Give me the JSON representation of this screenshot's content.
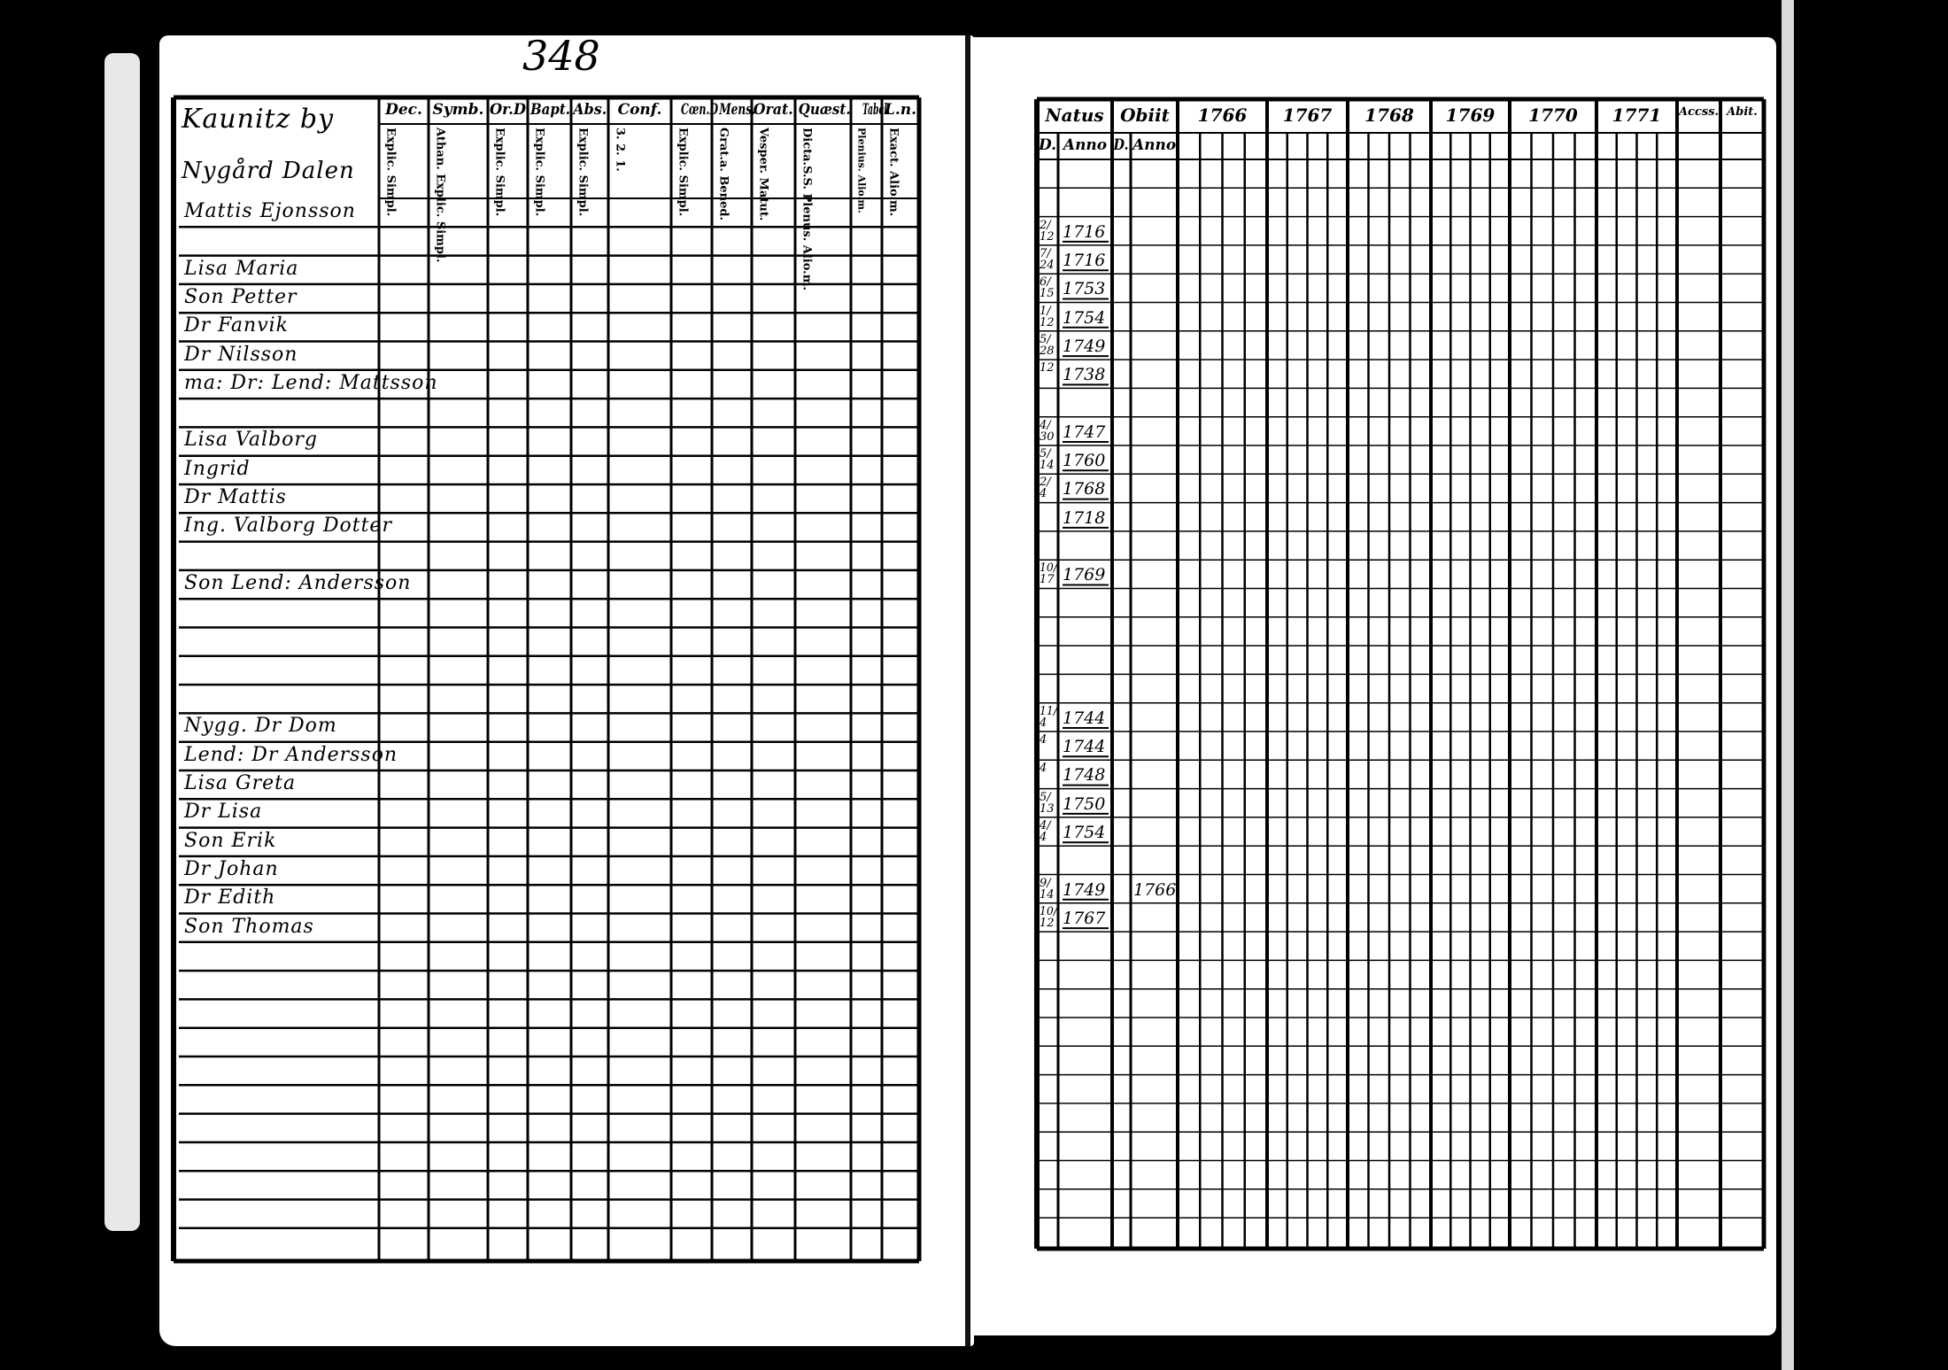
{
  "page_number": "348",
  "left_page": {
    "title_lines": [
      "Kaunitz by",
      "Nygård Dalen"
    ],
    "columns": [
      {
        "label": "Dec.",
        "sub": [
          "Explic.",
          "Simpl."
        ]
      },
      {
        "label": "Symb.",
        "sub": [
          "Athan.",
          "Explic.",
          "Simpl."
        ]
      },
      {
        "label": "Or.D",
        "sub": [
          "Explic.",
          "Simpl."
        ]
      },
      {
        "label": "Bapt.",
        "sub": [
          "Explic.",
          "Simpl."
        ]
      },
      {
        "label": "Abs.",
        "sub": [
          "Explic.",
          "Simpl."
        ]
      },
      {
        "label": "Conf.",
        "sub": [
          "3.",
          "2.",
          "1."
        ]
      },
      {
        "label": "Cœn.D",
        "sub": [
          "Explic.",
          "Simpl."
        ]
      },
      {
        "label": "Mens.",
        "sub": [
          "Grat.a.",
          "Bened."
        ]
      },
      {
        "label": "Orat.",
        "sub": [
          "Vesper.",
          "Matut."
        ]
      },
      {
        "label": "Quæst.",
        "sub": [
          "Dicta.S.S.",
          "Plenus.",
          "Alio.m."
        ]
      },
      {
        "label": "Tabel.",
        "sub": [
          "Plenius.",
          "Alio.m."
        ]
      },
      {
        "label": "L.n.",
        "sub": [
          "Exact.",
          "Alio.m."
        ]
      }
    ],
    "names": [
      {
        "row": 0,
        "text": "Mattis Ejonsson"
      },
      {
        "row": 2,
        "text": "Lisa Maria"
      },
      {
        "row": 3,
        "text": "Son Petter"
      },
      {
        "row": 4,
        "text": "Dr Fanvik"
      },
      {
        "row": 5,
        "text": "Dr Nilsson"
      },
      {
        "row": 6,
        "text": "ma: Dr: Lend: Mattsson"
      },
      {
        "row": 8,
        "text": "Lisa Valborg"
      },
      {
        "row": 9,
        "text": "Ingrid"
      },
      {
        "row": 10,
        "text": "Dr Mattis"
      },
      {
        "row": 11,
        "text": "Ing. Valborg Dotter"
      },
      {
        "row": 13,
        "text": "Son Lend: Andersson"
      },
      {
        "row": 18,
        "text": "Nygg. Dr Dom"
      },
      {
        "row": 19,
        "text": "Lend: Dr Andersson"
      },
      {
        "row": 20,
        "text": "Lisa Greta"
      },
      {
        "row": 21,
        "text": "Dr Lisa"
      },
      {
        "row": 22,
        "text": "Son Erik"
      },
      {
        "row": 23,
        "text": "Dr Johan"
      },
      {
        "row": 24,
        "text": "Dr Edith"
      },
      {
        "row": 25,
        "text": "Son Thomas"
      }
    ]
  },
  "right_page": {
    "columns": [
      "Natus",
      "Obiit",
      "1766",
      "1767",
      "1768",
      "1769",
      "1770",
      "1771",
      "Accss.",
      "Abit."
    ],
    "subcolumns": {
      "natus": [
        "D.",
        "Anno"
      ],
      "obiit": [
        "D.",
        "Anno"
      ]
    },
    "entries": [
      {
        "row": 2,
        "day": "2/12",
        "natus": "1716",
        "obiit": ""
      },
      {
        "row": 3,
        "day": "7/24",
        "natus": "1716",
        "obiit": ""
      },
      {
        "row": 4,
        "day": "6/15",
        "natus": "1753",
        "obiit": ""
      },
      {
        "row": 5,
        "day": "1/12",
        "natus": "1754",
        "obiit": ""
      },
      {
        "row": 6,
        "day": "5/28",
        "natus": "1749",
        "obiit": ""
      },
      {
        "row": 7,
        "day": "12",
        "natus": "1738",
        "obiit": ""
      },
      {
        "row": 9,
        "day": "4/30",
        "natus": "1747",
        "obiit": ""
      },
      {
        "row": 10,
        "day": "5/14",
        "natus": "1760",
        "obiit": ""
      },
      {
        "row": 11,
        "day": "2/4",
        "natus": "1768",
        "obiit": ""
      },
      {
        "row": 12,
        "day": "",
        "natus": "1718",
        "obiit": ""
      },
      {
        "row": 14,
        "day": "10/17",
        "natus": "1769",
        "obiit": ""
      },
      {
        "row": 19,
        "day": "11/4",
        "natus": "1744",
        "obiit": ""
      },
      {
        "row": 20,
        "day": "4",
        "natus": "1744",
        "obiit": ""
      },
      {
        "row": 21,
        "day": "4",
        "natus": "1748",
        "obiit": ""
      },
      {
        "row": 22,
        "day": "5/13",
        "natus": "1750",
        "obiit": ""
      },
      {
        "row": 23,
        "day": "4/4",
        "natus": "1754",
        "obiit": ""
      },
      {
        "row": 25,
        "day": "9/14",
        "natus": "1749",
        "obiit": "1766"
      },
      {
        "row": 26,
        "day": "10/12",
        "natus": "1767",
        "obiit": ""
      }
    ]
  }
}
